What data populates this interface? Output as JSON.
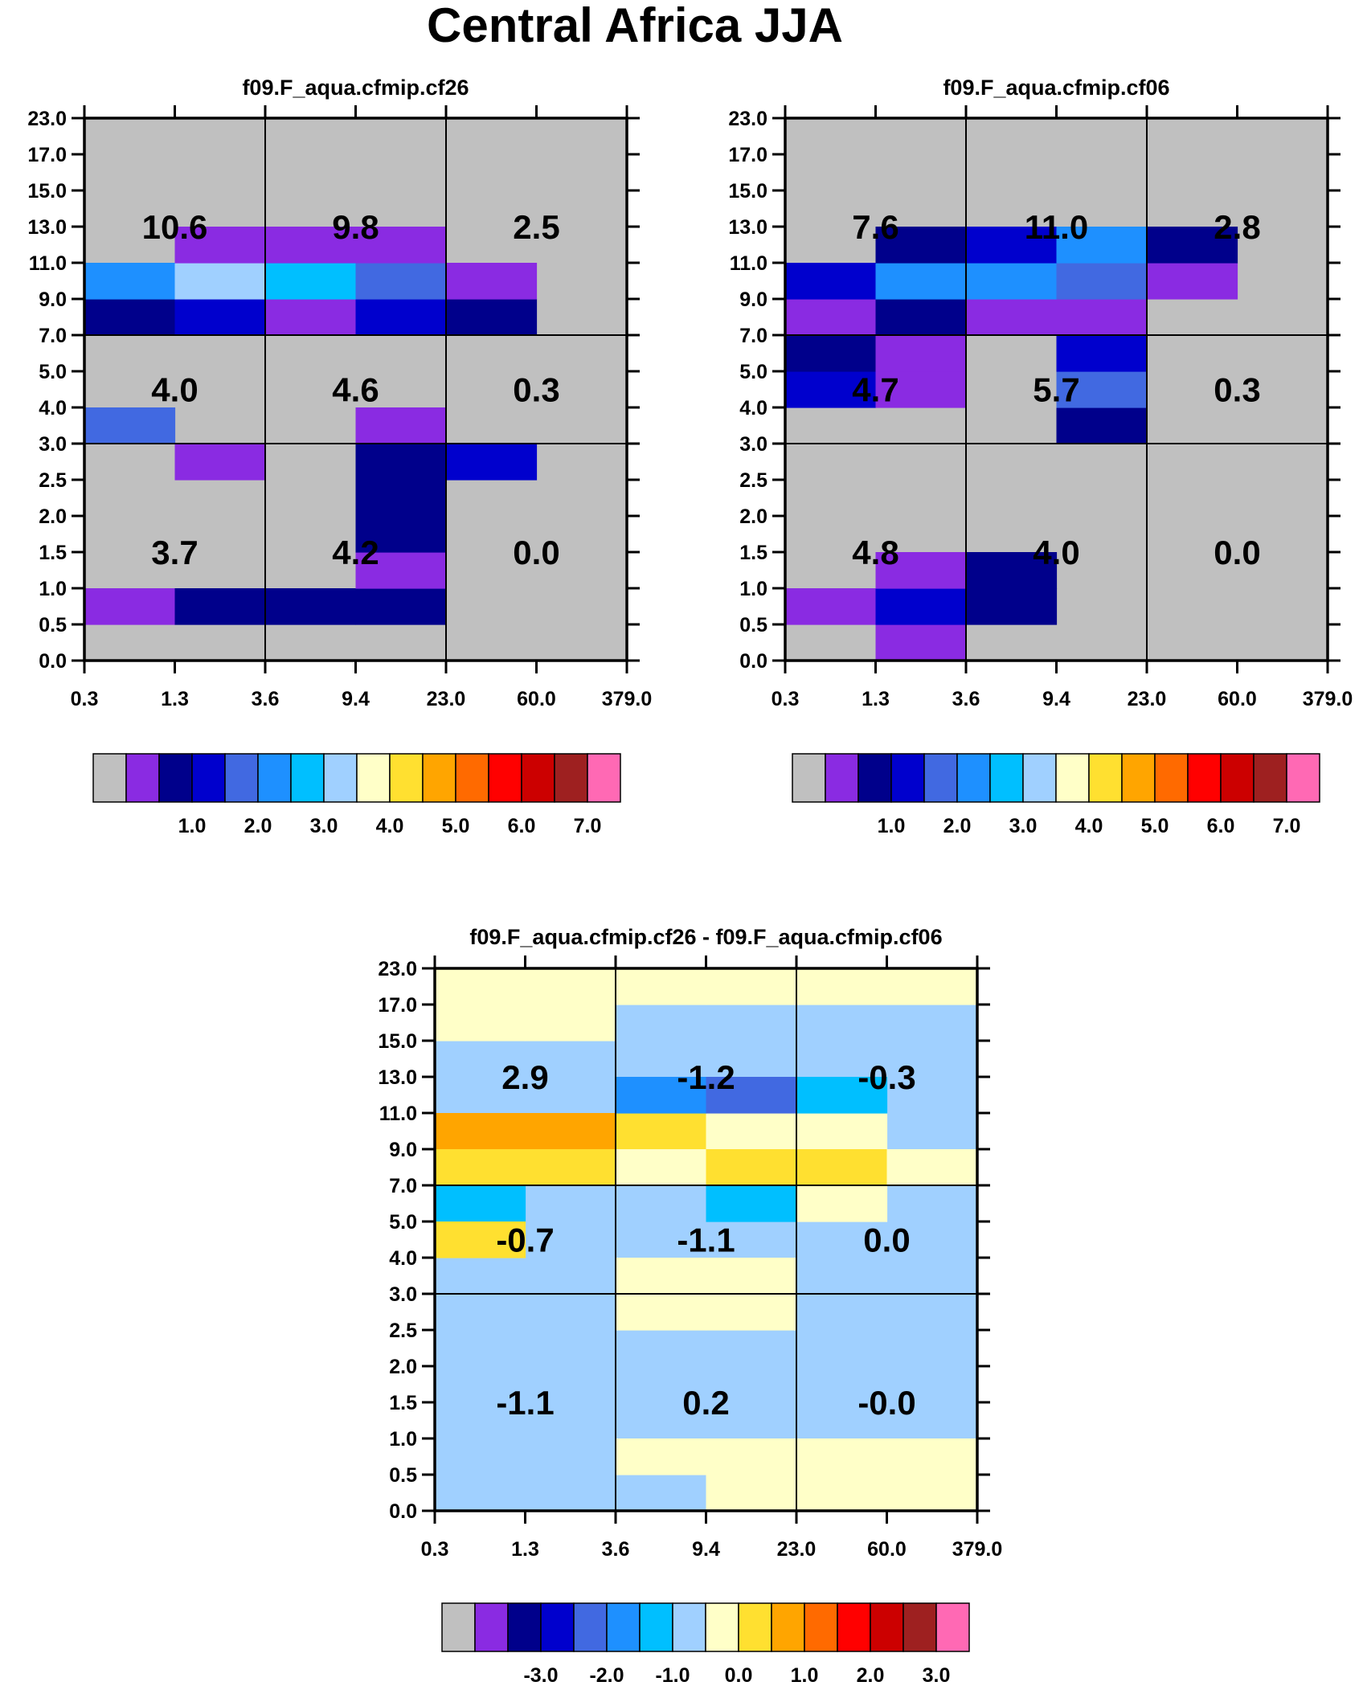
{
  "chart_data": {
    "type": "heatmap",
    "title": "Central Africa JJA",
    "panels": [
      {
        "title": "f09.F_aqua.cfmip.cf26",
        "x_tick_labels": [
          "0.3",
          "1.3",
          "3.6",
          "9.4",
          "23.0",
          "60.0",
          "379.0"
        ],
        "y_tick_labels": [
          "0.0",
          "0.5",
          "1.0",
          "1.5",
          "2.0",
          "2.5",
          "3.0",
          "4.0",
          "5.0",
          "7.0",
          "9.0",
          "11.0",
          "13.0",
          "15.0",
          "17.0",
          "23.0"
        ],
        "colorbar_labels": [
          "1.0",
          "2.0",
          "3.0",
          "4.0",
          "5.0",
          "6.0",
          "7.0"
        ],
        "group_values": [
          [
            "3.7",
            "4.2",
            "0.0"
          ],
          [
            "4.0",
            "4.6",
            "0.3"
          ],
          [
            "10.6",
            "9.8",
            "2.5"
          ]
        ],
        "cells": [
          [
            0,
            1,
            1
          ],
          [
            1,
            1,
            2
          ],
          [
            2,
            1,
            2
          ],
          [
            3,
            1,
            2
          ],
          [
            3,
            2,
            1
          ],
          [
            3,
            3,
            2
          ],
          [
            4,
            5,
            3
          ],
          [
            0,
            6,
            4
          ],
          [
            1,
            5,
            1
          ],
          [
            3,
            5,
            2
          ],
          [
            3,
            4,
            2
          ],
          [
            3,
            6,
            1
          ],
          [
            0,
            9,
            2
          ],
          [
            1,
            9,
            3
          ],
          [
            2,
            9,
            1
          ],
          [
            3,
            9,
            3
          ],
          [
            4,
            9,
            2
          ],
          [
            0,
            10,
            5
          ],
          [
            1,
            10,
            7
          ],
          [
            2,
            10,
            6
          ],
          [
            3,
            10,
            4
          ],
          [
            4,
            10,
            1
          ],
          [
            1,
            11,
            1
          ],
          [
            2,
            11,
            1
          ],
          [
            3,
            11,
            1
          ]
        ]
      },
      {
        "title": "f09.F_aqua.cfmip.cf06",
        "x_tick_labels": [
          "0.3",
          "1.3",
          "3.6",
          "9.4",
          "23.0",
          "60.0",
          "379.0"
        ],
        "y_tick_labels": [
          "0.0",
          "0.5",
          "1.0",
          "1.5",
          "2.0",
          "2.5",
          "3.0",
          "4.0",
          "5.0",
          "7.0",
          "9.0",
          "11.0",
          "13.0",
          "15.0",
          "17.0",
          "23.0"
        ],
        "colorbar_labels": [
          "1.0",
          "2.0",
          "3.0",
          "4.0",
          "5.0",
          "6.0",
          "7.0"
        ],
        "group_values": [
          [
            "4.8",
            "4.0",
            "0.0"
          ],
          [
            "4.7",
            "5.7",
            "0.3"
          ],
          [
            "7.6",
            "11.0",
            "2.8"
          ]
        ],
        "cells": [
          [
            1,
            0,
            1
          ],
          [
            0,
            1,
            1
          ],
          [
            1,
            1,
            3
          ],
          [
            1,
            2,
            1
          ],
          [
            2,
            1,
            2
          ],
          [
            2,
            2,
            2
          ],
          [
            0,
            7,
            3
          ],
          [
            0,
            8,
            2
          ],
          [
            1,
            7,
            1
          ],
          [
            1,
            8,
            1
          ],
          [
            3,
            6,
            2
          ],
          [
            3,
            7,
            4
          ],
          [
            3,
            8,
            3
          ],
          [
            0,
            9,
            1
          ],
          [
            1,
            9,
            2
          ],
          [
            2,
            9,
            1
          ],
          [
            3,
            9,
            1
          ],
          [
            0,
            10,
            3
          ],
          [
            1,
            10,
            5
          ],
          [
            2,
            10,
            5
          ],
          [
            3,
            10,
            4
          ],
          [
            4,
            10,
            1
          ],
          [
            1,
            11,
            2
          ],
          [
            2,
            11,
            3
          ],
          [
            3,
            11,
            5
          ],
          [
            4,
            11,
            2
          ]
        ]
      },
      {
        "title": "f09.F_aqua.cfmip.cf26 - f09.F_aqua.cfmip.cf06",
        "x_tick_labels": [
          "0.3",
          "1.3",
          "3.6",
          "9.4",
          "23.0",
          "60.0",
          "379.0"
        ],
        "y_tick_labels": [
          "0.0",
          "0.5",
          "1.0",
          "1.5",
          "2.0",
          "2.5",
          "3.0",
          "4.0",
          "5.0",
          "7.0",
          "9.0",
          "11.0",
          "13.0",
          "15.0",
          "17.0",
          "23.0"
        ],
        "colorbar_labels": [
          "-3.0",
          "-2.0",
          "-1.0",
          "0.0",
          "1.0",
          "2.0",
          "3.0"
        ],
        "group_values": [
          [
            "-1.1",
            "0.2",
            "-0.0"
          ],
          [
            "-0.7",
            "-1.1",
            "0.0"
          ],
          [
            "2.9",
            "-1.2",
            "-0.3"
          ]
        ],
        "background_level": 7,
        "cells": [
          [
            0,
            13,
            8
          ],
          [
            1,
            13,
            8
          ],
          [
            0,
            14,
            8
          ],
          [
            1,
            14,
            8
          ],
          [
            2,
            14,
            8
          ],
          [
            3,
            14,
            8
          ],
          [
            4,
            14,
            8
          ],
          [
            5,
            14,
            8
          ],
          [
            0,
            10,
            10
          ],
          [
            1,
            10,
            10
          ],
          [
            0,
            9,
            9
          ],
          [
            1,
            9,
            9
          ],
          [
            2,
            10,
            9
          ],
          [
            3,
            10,
            8
          ],
          [
            4,
            10,
            8
          ],
          [
            2,
            9,
            8
          ],
          [
            3,
            9,
            9
          ],
          [
            4,
            9,
            9
          ],
          [
            5,
            9,
            8
          ],
          [
            2,
            11,
            5
          ],
          [
            3,
            11,
            4
          ],
          [
            4,
            11,
            6
          ],
          [
            0,
            8,
            6
          ],
          [
            0,
            7,
            9
          ],
          [
            3,
            8,
            6
          ],
          [
            4,
            8,
            8
          ],
          [
            2,
            5,
            8
          ],
          [
            3,
            5,
            8
          ],
          [
            2,
            6,
            8
          ],
          [
            3,
            6,
            8
          ],
          [
            2,
            1,
            8
          ],
          [
            3,
            1,
            8
          ],
          [
            4,
            1,
            8
          ],
          [
            5,
            1,
            8
          ],
          [
            5,
            0,
            8
          ],
          [
            3,
            0,
            8
          ],
          [
            4,
            0,
            8
          ]
        ]
      }
    ],
    "colors": [
      "#c0c0c0",
      "#8a2be2",
      "#00008b",
      "#0000cd",
      "#4169e1",
      "#1e90ff",
      "#00bfff",
      "#a0d0ff",
      "#ffffc8",
      "#ffe030",
      "#ffa500",
      "#ff6a00",
      "#ff0000",
      "#cc0000",
      "#9e2020",
      "#ff69b4"
    ]
  }
}
